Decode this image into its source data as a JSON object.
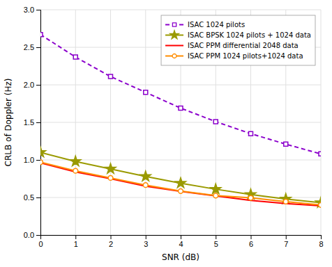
{
  "chart_data": {
    "type": "line",
    "x": [
      0,
      1,
      2,
      3,
      4,
      5,
      6,
      7,
      8
    ],
    "series": [
      {
        "name": "ISAC 1024 pilots",
        "color": "#8B00CC",
        "marker": "square",
        "line_style": "dashed",
        "values": [
          2.67,
          2.37,
          2.11,
          1.9,
          1.69,
          1.51,
          1.35,
          1.21,
          1.08
        ]
      },
      {
        "name": "ISAC BPSK 1024 pilots + 1024 data",
        "color": "#9A9A00",
        "marker": "star",
        "line_style": "solid",
        "values": [
          1.1,
          0.98,
          0.88,
          0.78,
          0.69,
          0.61,
          0.54,
          0.48,
          0.43
        ]
      },
      {
        "name": "ISAC PPM differential 2048 data",
        "color": "#FF0000",
        "line_style": "solid",
        "values": [
          0.96,
          0.84,
          0.75,
          0.65,
          0.58,
          0.52,
          0.46,
          0.42,
          0.39
        ]
      },
      {
        "name": "ISAC PPM 1024 pilots+1024 data",
        "color": "#FF8C00",
        "marker": "circle",
        "line_style": "solid",
        "values": [
          0.97,
          0.855,
          0.76,
          0.665,
          0.585,
          0.525,
          0.495,
          0.445,
          0.4
        ]
      }
    ],
    "xlabel": "SNR (dB)",
    "ylabel": "CRLB of Doppler (Hz)",
    "xlim": [
      0,
      8
    ],
    "ylim": [
      0,
      3
    ],
    "xticks": [
      0,
      1,
      2,
      3,
      4,
      5,
      6,
      7,
      8
    ],
    "yticks": [
      {
        "value": 0,
        "label": "0.0"
      },
      0.5,
      {
        "value": 1.0,
        "label": "1.0"
      },
      1.5,
      {
        "value": 2.0,
        "label": "2.0"
      },
      2.5,
      {
        "value": 3.0,
        "label": "3.0"
      }
    ],
    "grid": true,
    "legend": "upper right"
  }
}
